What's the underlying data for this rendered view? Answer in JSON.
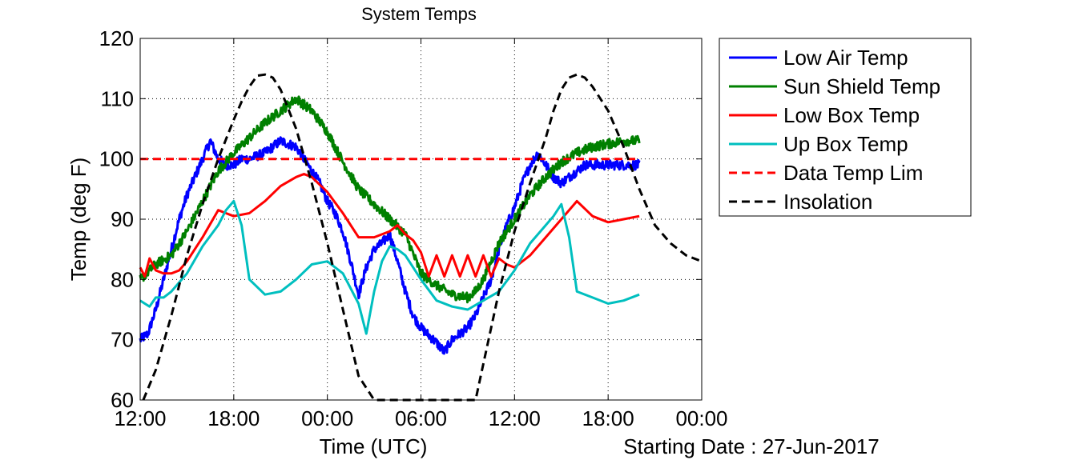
{
  "chart_data": {
    "type": "line",
    "title": "System Temps",
    "xlabel": "Time (UTC)",
    "ylabel": "Temp (deg F)",
    "start_date_label": "Starting Date : 27-Jun-2017",
    "x_units": "hours since 12:00 UTC on start date",
    "x_range": [
      0,
      36
    ],
    "ylim": [
      60,
      120
    ],
    "x_ticks": [
      0,
      6,
      12,
      18,
      24,
      30,
      36
    ],
    "x_tick_labels": [
      "12:00",
      "18:00",
      "00:00",
      "06:00",
      "12:00",
      "18:00",
      "00:00"
    ],
    "y_ticks": [
      60,
      70,
      80,
      90,
      100,
      110,
      120
    ],
    "y_tick_labels": [
      "60",
      "70",
      "80",
      "90",
      "100",
      "110",
      "120"
    ],
    "grid": true,
    "grid_style": "dotted",
    "legend_position": "outside-right-top",
    "series": [
      {
        "name": "Low Air Temp",
        "color": "#0000ff",
        "style": "solid",
        "noisy": true,
        "x": [
          0,
          0.5,
          1,
          1.5,
          2,
          2.5,
          3,
          3.5,
          4,
          4.5,
          5,
          5.5,
          6,
          6.5,
          7,
          8,
          9,
          10,
          10.5,
          11,
          11.5,
          12,
          12.5,
          13,
          13.5,
          14,
          14.5,
          15,
          15.5,
          16,
          16.5,
          17,
          17.5,
          18,
          19,
          19.5,
          20,
          20.5,
          21,
          21.5,
          22,
          22.5,
          23,
          23.5,
          24,
          24.5,
          25,
          25.5,
          26,
          26.5,
          27,
          27.5,
          28,
          28.5,
          29,
          29.5,
          30,
          30.5,
          31,
          32
        ],
        "y": [
          70,
          71,
          75,
          80,
          85,
          90,
          94,
          97,
          100,
          103,
          100,
          99,
          99,
          100,
          100,
          101,
          103,
          102,
          100,
          98,
          96,
          93,
          91,
          88,
          83,
          77.5,
          82,
          85,
          86,
          87.5,
          83,
          78,
          74,
          72,
          69.5,
          68,
          70,
          71,
          72,
          74,
          77,
          80,
          85,
          89,
          92,
          96,
          99,
          101,
          99,
          97,
          96,
          97,
          98,
          99,
          99,
          99,
          99,
          99,
          99,
          99
        ],
        "x_note": "hours"
      },
      {
        "name": "Sun Shield Temp",
        "color": "#008000",
        "style": "solid",
        "noisy": true,
        "x": [
          0,
          1,
          2,
          3,
          4,
          5,
          6,
          7,
          8,
          9,
          10,
          11,
          12,
          13,
          14,
          15,
          16,
          17,
          18,
          19,
          20,
          21,
          21.5,
          22,
          23,
          24,
          25,
          26,
          27,
          28,
          29,
          30,
          31,
          32
        ],
        "y": [
          80,
          82.5,
          84,
          88,
          93,
          98,
          101,
          103.5,
          106,
          108,
          110,
          108,
          104.5,
          99.5,
          95,
          92.5,
          90,
          87.5,
          81,
          79,
          77.5,
          77,
          78,
          80,
          86,
          90,
          94,
          97,
          99.5,
          101,
          102,
          102.5,
          103,
          103
        ]
      },
      {
        "name": "Low Box Temp",
        "color": "#ff0000",
        "style": "solid",
        "noisy": false,
        "x": [
          0,
          0.3,
          0.6,
          1,
          1.5,
          2,
          2.5,
          3,
          4,
          5,
          5.5,
          6,
          7,
          8,
          9,
          10,
          10.5,
          11,
          12,
          13,
          14,
          15,
          16,
          16.5,
          17,
          17.5,
          18,
          18.5,
          19,
          19.5,
          20,
          20.5,
          21,
          21.5,
          22,
          22.5,
          23,
          23.5,
          24,
          25,
          26,
          27,
          28,
          29,
          30,
          31,
          32
        ],
        "y": [
          82,
          80.5,
          83.5,
          81.5,
          81,
          81,
          81.5,
          83,
          87,
          91.5,
          91,
          90.5,
          91,
          93,
          95.5,
          97,
          97.5,
          97,
          94.5,
          91,
          87,
          87,
          88,
          89,
          87.5,
          86.5,
          84.5,
          80.5,
          84,
          80.5,
          84,
          80.5,
          84,
          80.5,
          84,
          80.5,
          83.5,
          82.5,
          82,
          84,
          87,
          90,
          93,
          90.5,
          89.5,
          90,
          90.5
        ]
      },
      {
        "name": "Up Box Temp",
        "color": "#00bfbf",
        "style": "solid",
        "noisy": false,
        "x": [
          0,
          0.3,
          0.6,
          1,
          1.5,
          2,
          3,
          4,
          5,
          5.5,
          6,
          6.5,
          7,
          8,
          9,
          10,
          11,
          12,
          13,
          14,
          14.5,
          15,
          15.5,
          16,
          16.5,
          17,
          18,
          19,
          20,
          21,
          22,
          23,
          24,
          25,
          26,
          26.5,
          27,
          27.5,
          28,
          29,
          30,
          31,
          32
        ],
        "y": [
          76.5,
          76,
          75.5,
          77,
          77,
          78,
          81,
          85.5,
          89,
          91.5,
          93,
          89,
          80,
          77.5,
          78,
          80,
          82.5,
          83,
          81,
          76,
          71,
          78,
          83,
          85.5,
          85,
          84,
          80,
          76.5,
          75.5,
          75,
          76.5,
          78,
          81.5,
          86,
          89,
          90.5,
          92.5,
          87,
          78,
          77,
          76,
          76.5,
          77.5
        ]
      },
      {
        "name": "Data Temp Lim",
        "color": "#ff0000",
        "style": "dashed",
        "x": [
          0,
          32
        ],
        "y": [
          100,
          100
        ]
      },
      {
        "name": "Insolation",
        "color": "#000000",
        "style": "dashed",
        "x": [
          0.2,
          1,
          2,
          3,
          4,
          5,
          6,
          6.5,
          7,
          7.5,
          8,
          8.5,
          9,
          10,
          11,
          12,
          13,
          14,
          15,
          16,
          17,
          18,
          19,
          20,
          21,
          21.5,
          22,
          23,
          24,
          25,
          26,
          26.5,
          27,
          27.5,
          28,
          28.5,
          29,
          30,
          31,
          32,
          33,
          34,
          35,
          36
        ],
        "y": [
          60,
          65,
          74,
          84,
          92.5,
          100,
          106.5,
          109.5,
          112,
          113.8,
          114,
          113.5,
          111.5,
          105,
          96,
          86,
          75,
          64,
          60,
          60,
          60,
          60,
          60,
          60,
          60,
          60,
          66,
          78,
          88,
          96,
          103.5,
          108,
          111.5,
          113.5,
          114,
          113.5,
          112,
          108,
          102,
          95,
          89,
          86,
          84,
          83
        ]
      }
    ]
  }
}
